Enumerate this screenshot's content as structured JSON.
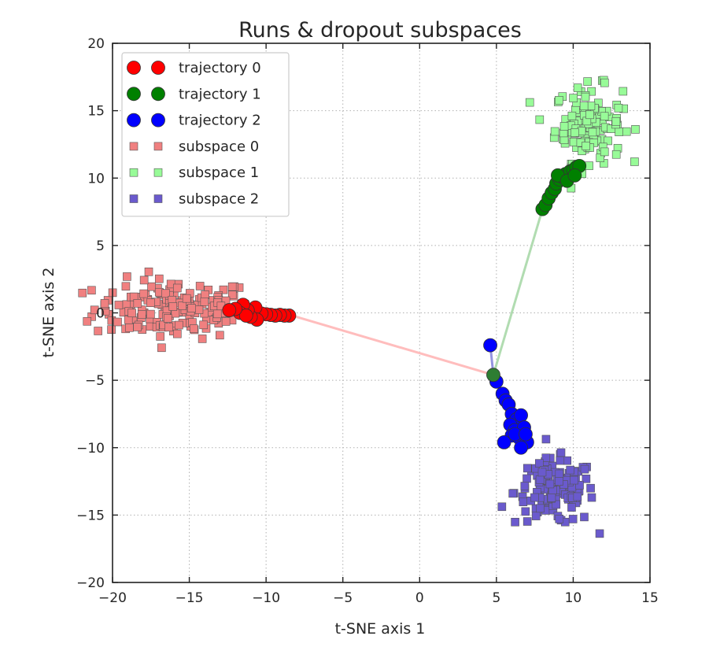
{
  "chart_data": {
    "type": "scatter",
    "title": "Runs & dropout subspaces",
    "xlabel": "t-SNE axis 1",
    "ylabel": "t-SNE axis 2",
    "xlim": [
      -20,
      15
    ],
    "ylim": [
      -20,
      20
    ],
    "xticks": [
      "−20",
      "−15",
      "−10",
      "−5",
      "0",
      "5",
      "10",
      "15"
    ],
    "yticks": [
      "20",
      "15",
      "10",
      "5",
      "0",
      "−5",
      "−10",
      "−15",
      "−20"
    ],
    "grid": true,
    "legend_position": "upper left",
    "start_point": [
      4.8,
      -4.6
    ],
    "trajectories": [
      {
        "name": "trajectory 0",
        "color": "#ff0000",
        "line_color": "#ffb6b6",
        "points": [
          [
            -8.5,
            -0.2
          ],
          [
            -8.8,
            -0.2
          ],
          [
            -9.1,
            -0.15
          ],
          [
            -9.4,
            -0.2
          ],
          [
            -9.7,
            -0.15
          ],
          [
            -10.0,
            -0.1
          ],
          [
            -10.3,
            -0.05
          ],
          [
            -10.7,
            0.4
          ],
          [
            -10.6,
            -0.5
          ],
          [
            -11.0,
            -0.3
          ],
          [
            -11.2,
            0.2
          ],
          [
            -11.5,
            0.6
          ],
          [
            -11.7,
            0.0
          ],
          [
            -11.3,
            -0.2
          ],
          [
            -12.0,
            0.3
          ],
          [
            -12.4,
            0.2
          ]
        ],
        "trail": [
          [
            4.8,
            -4.6
          ],
          [
            -8.3,
            -0.2
          ]
        ]
      },
      {
        "name": "trajectory 1",
        "color": "#008000",
        "line_color": "#a8d8a8",
        "points": [
          [
            8.0,
            7.7
          ],
          [
            8.2,
            8.0
          ],
          [
            8.4,
            8.5
          ],
          [
            8.6,
            8.9
          ],
          [
            8.8,
            9.2
          ],
          [
            8.9,
            9.6
          ],
          [
            9.1,
            9.9
          ],
          [
            9.3,
            10.1
          ],
          [
            9.5,
            10.3
          ],
          [
            9.8,
            10.5
          ],
          [
            10.0,
            10.6
          ],
          [
            10.2,
            10.8
          ],
          [
            10.4,
            10.9
          ],
          [
            9.0,
            10.2
          ],
          [
            9.6,
            9.8
          ],
          [
            10.1,
            10.2
          ]
        ],
        "trail": [
          [
            4.8,
            -4.6
          ],
          [
            8.0,
            7.7
          ]
        ]
      },
      {
        "name": "trajectory 2",
        "color": "#0000ff",
        "line_color": "#8888dd",
        "points": [
          [
            4.6,
            -2.4
          ],
          [
            5.0,
            -5.1
          ],
          [
            5.4,
            -6.0
          ],
          [
            5.6,
            -6.5
          ],
          [
            5.8,
            -6.8
          ],
          [
            6.0,
            -7.5
          ],
          [
            6.3,
            -7.9
          ],
          [
            6.6,
            -7.6
          ],
          [
            5.9,
            -8.3
          ],
          [
            6.2,
            -8.7
          ],
          [
            6.8,
            -8.5
          ],
          [
            6.0,
            -9.1
          ],
          [
            6.5,
            -9.3
          ],
          [
            7.0,
            -9.6
          ],
          [
            5.5,
            -9.6
          ],
          [
            6.6,
            -10.0
          ],
          [
            6.2,
            -9.0
          ],
          [
            6.9,
            -9.0
          ]
        ],
        "trail": [
          [
            4.6,
            -2.4
          ],
          [
            4.8,
            -4.6
          ]
        ]
      }
    ],
    "subspaces": [
      {
        "name": "subspace 0",
        "color": "#f08080",
        "center": [
          -16.0,
          0.3
        ],
        "spread": [
          2.6,
          1.1
        ],
        "count": 170
      },
      {
        "name": "subspace 1",
        "color": "#98fb98",
        "center": [
          11.0,
          14.0
        ],
        "spread": [
          1.1,
          1.4
        ],
        "count": 130
      },
      {
        "name": "subspace 2",
        "color": "#6a5acd",
        "center": [
          8.8,
          -13.3
        ],
        "spread": [
          1.3,
          1.2
        ],
        "count": 140
      }
    ]
  }
}
